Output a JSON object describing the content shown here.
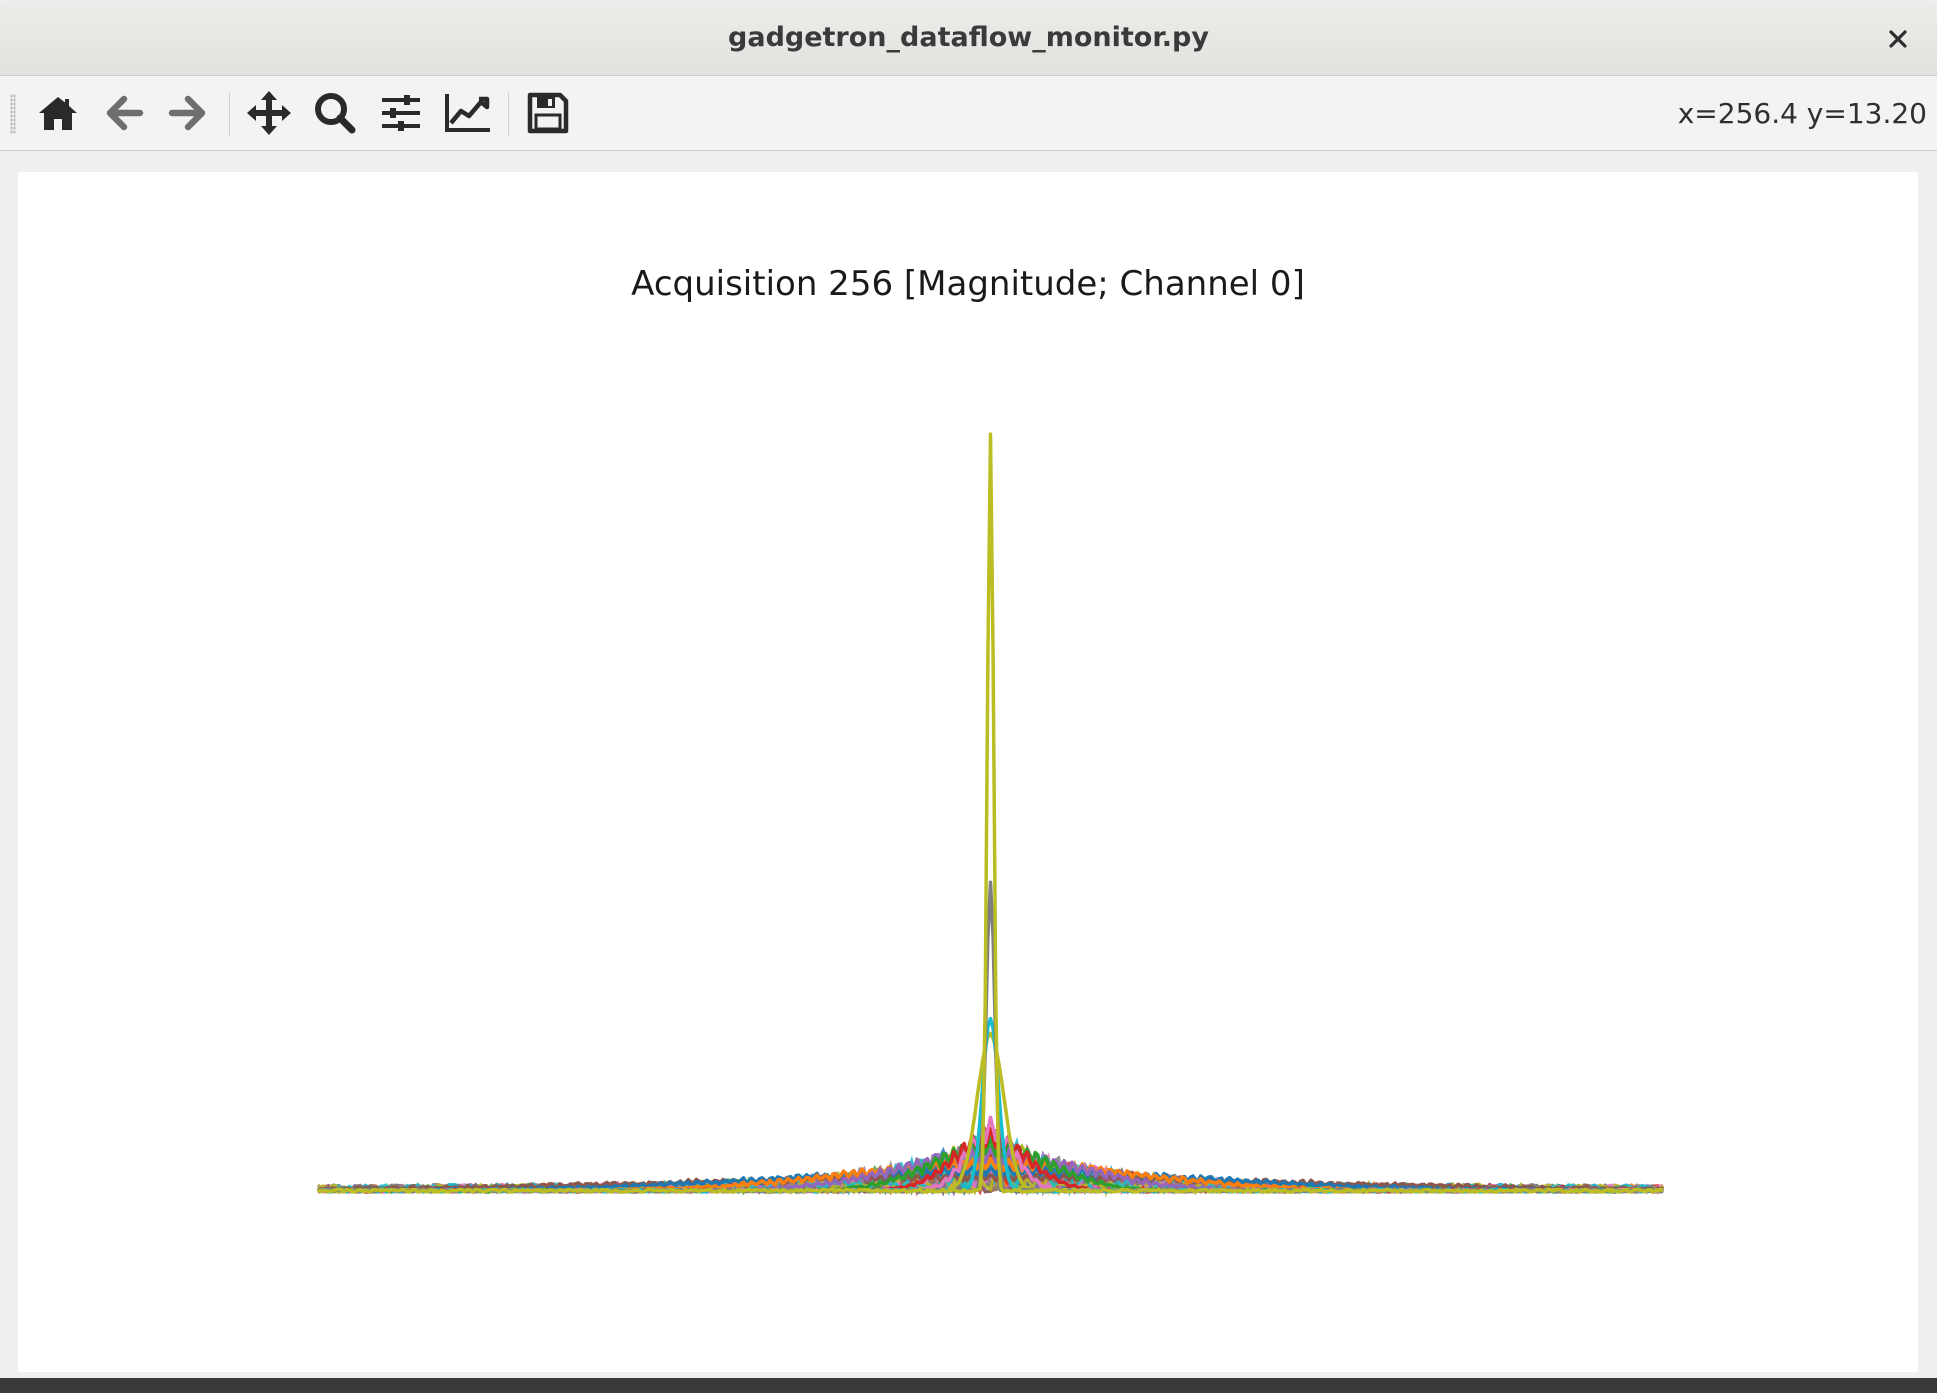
{
  "window": {
    "title": "gadgetron_dataflow_monitor.py",
    "close_label": "×"
  },
  "toolbar": {
    "buttons": [
      {
        "name": "home-button",
        "icon": "home-icon"
      },
      {
        "name": "back-button",
        "icon": "arrow-left-icon"
      },
      {
        "name": "forward-button",
        "icon": "arrow-right-icon"
      },
      {
        "name": "pan-button",
        "icon": "move-arrows-icon"
      },
      {
        "name": "zoom-button",
        "icon": "magnifier-icon"
      },
      {
        "name": "configure-subplots-button",
        "icon": "sliders-icon"
      },
      {
        "name": "edit-axes-button",
        "icon": "line-chart-icon"
      },
      {
        "name": "save-button",
        "icon": "floppy-disk-icon"
      }
    ],
    "coords_text": "x=256.4 y=13.20"
  },
  "chart_data": {
    "type": "line",
    "title": "Acquisition 256 [Magnitude; Channel 0]",
    "xlabel": "",
    "ylabel": "",
    "axes_visible": false,
    "grid": false,
    "xlim": [
      0,
      512
    ],
    "ylim": [
      0,
      16
    ],
    "description_of_series": "many overlaid magnitude traces, peak at center sample 256",
    "peak_x": 256,
    "series": [
      {
        "color": "#bcbd22",
        "peak": 14.5,
        "width": 1.2
      },
      {
        "color": "#7f7f7f",
        "peak": 5.9,
        "width": 1.6
      },
      {
        "color": "#17becf",
        "peak": 3.3,
        "width": 3.0
      },
      {
        "color": "#bcbd22",
        "peak": 3.0,
        "width": 5.0
      },
      {
        "color": "#e377c2",
        "peak": 1.4,
        "width": 9.0
      },
      {
        "color": "#d62728",
        "peak": 1.2,
        "width": 14.0
      },
      {
        "color": "#2ca02c",
        "peak": 1.0,
        "width": 22.0
      },
      {
        "color": "#9467bd",
        "peak": 0.8,
        "width": 35.0
      },
      {
        "color": "#ff7f0e",
        "peak": 0.6,
        "width": 55.0
      },
      {
        "color": "#1f77b4",
        "peak": 0.45,
        "width": 80.0
      },
      {
        "color": "#8c564b",
        "peak": 0.3,
        "width": 120.0
      }
    ],
    "colors": [
      "#1f77b4",
      "#ff7f0e",
      "#2ca02c",
      "#d62728",
      "#9467bd",
      "#8c564b",
      "#e377c2",
      "#7f7f7f",
      "#bcbd22",
      "#17becf"
    ]
  }
}
